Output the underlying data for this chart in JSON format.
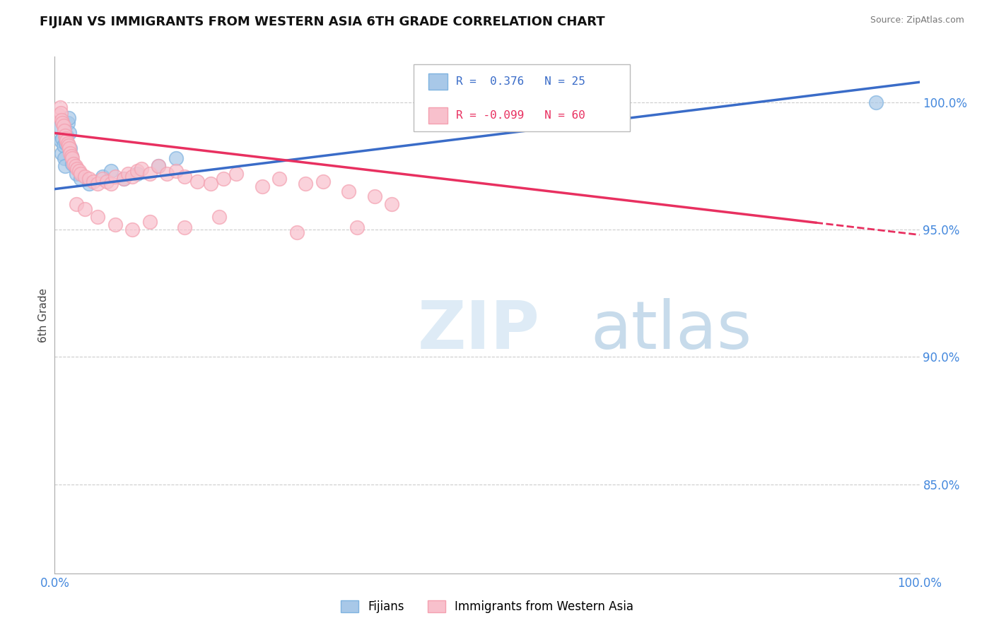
{
  "title": "FIJIAN VS IMMIGRANTS FROM WESTERN ASIA 6TH GRADE CORRELATION CHART",
  "source": "Source: ZipAtlas.com",
  "ylabel": "6th Grade",
  "xlim": [
    0.0,
    1.0
  ],
  "ylim": [
    0.815,
    1.018
  ],
  "yticks": [
    0.85,
    0.9,
    0.95,
    1.0
  ],
  "ytick_labels": [
    "85.0%",
    "90.0%",
    "95.0%",
    "100.0%"
  ],
  "background_color": "#ffffff",
  "grid_color": "#cccccc",
  "blue_color": "#7fb3e0",
  "pink_color": "#f4a0b0",
  "blue_fill": "#a8c8e8",
  "pink_fill": "#f8c0cc",
  "blue_line_color": "#3a6cc8",
  "pink_line_color": "#e83060",
  "R_blue": 0.376,
  "N_blue": 25,
  "R_pink": -0.099,
  "N_pink": 60,
  "legend_label_blue": "Fijians",
  "legend_label_pink": "Immigrants from Western Asia",
  "blue_line_x0": 0.0,
  "blue_line_y0": 0.966,
  "blue_line_x1": 1.0,
  "blue_line_y1": 1.008,
  "pink_line_x0": 0.0,
  "pink_line_y0": 0.988,
  "pink_line_x1": 1.0,
  "pink_line_y1": 0.948,
  "blue_scatter_x": [
    0.005,
    0.007,
    0.008,
    0.009,
    0.01,
    0.011,
    0.012,
    0.013,
    0.014,
    0.015,
    0.016,
    0.017,
    0.018,
    0.019,
    0.02,
    0.025,
    0.03,
    0.04,
    0.055,
    0.065,
    0.08,
    0.095,
    0.12,
    0.14,
    0.95
  ],
  "blue_scatter_y": [
    0.99,
    0.985,
    0.98,
    0.986,
    0.983,
    0.978,
    0.975,
    0.984,
    0.987,
    0.992,
    0.994,
    0.988,
    0.982,
    0.979,
    0.976,
    0.972,
    0.97,
    0.968,
    0.971,
    0.973,
    0.97,
    0.972,
    0.975,
    0.978,
    1.0
  ],
  "pink_scatter_x": [
    0.005,
    0.006,
    0.007,
    0.008,
    0.009,
    0.01,
    0.011,
    0.012,
    0.013,
    0.014,
    0.015,
    0.016,
    0.017,
    0.018,
    0.019,
    0.02,
    0.022,
    0.024,
    0.026,
    0.028,
    0.03,
    0.035,
    0.04,
    0.045,
    0.05,
    0.055,
    0.06,
    0.065,
    0.07,
    0.08,
    0.085,
    0.09,
    0.095,
    0.1,
    0.11,
    0.12,
    0.13,
    0.14,
    0.15,
    0.165,
    0.18,
    0.195,
    0.21,
    0.24,
    0.26,
    0.29,
    0.31,
    0.34,
    0.37,
    0.39,
    0.025,
    0.035,
    0.05,
    0.07,
    0.09,
    0.11,
    0.15,
    0.19,
    0.28,
    0.35
  ],
  "pink_scatter_y": [
    0.995,
    0.998,
    0.996,
    0.993,
    0.992,
    0.991,
    0.989,
    0.987,
    0.986,
    0.985,
    0.984,
    0.983,
    0.982,
    0.98,
    0.979,
    0.978,
    0.976,
    0.975,
    0.974,
    0.973,
    0.972,
    0.971,
    0.97,
    0.969,
    0.968,
    0.97,
    0.969,
    0.968,
    0.971,
    0.97,
    0.972,
    0.971,
    0.973,
    0.974,
    0.972,
    0.975,
    0.972,
    0.973,
    0.971,
    0.969,
    0.968,
    0.97,
    0.972,
    0.967,
    0.97,
    0.968,
    0.969,
    0.965,
    0.963,
    0.96,
    0.96,
    0.958,
    0.955,
    0.952,
    0.95,
    0.953,
    0.951,
    0.955,
    0.949,
    0.951
  ]
}
